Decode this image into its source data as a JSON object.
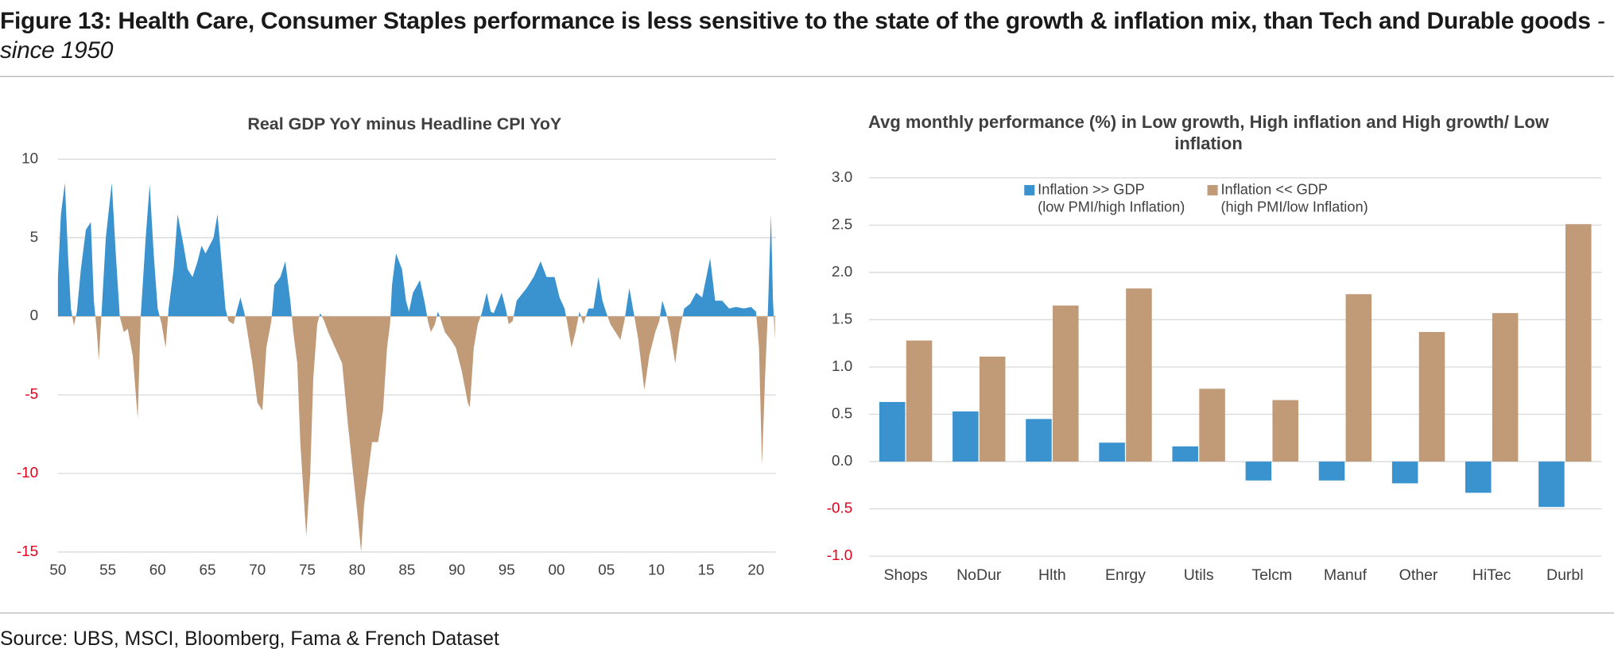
{
  "title": "Figure 13: Health Care, Consumer Staples performance is less sensitive to the state of the growth & inflation mix, than Tech and Durable goods",
  "subtitle": "- since 1950",
  "source": "Source: UBS, MSCI, Bloomberg, Fama & French Dataset",
  "chart_data": [
    {
      "type": "area",
      "title": "Real GDP YoY minus Headline CPI YoY",
      "x": [
        1950.0,
        1950.3,
        1950.7,
        1951.0,
        1951.3,
        1951.6,
        1951.9,
        1952.3,
        1952.8,
        1953.3,
        1953.6,
        1953.9,
        1954.1,
        1954.4,
        1954.8,
        1955.4,
        1955.8,
        1956.2,
        1956.6,
        1957.0,
        1957.5,
        1958.0,
        1958.3,
        1958.8,
        1959.2,
        1959.6,
        1960.0,
        1960.4,
        1960.8,
        1961.1,
        1961.6,
        1962.0,
        1962.6,
        1963.0,
        1963.5,
        1964.0,
        1964.4,
        1964.8,
        1965.2,
        1965.6,
        1966.0,
        1966.4,
        1966.8,
        1967.1,
        1967.6,
        1968.0,
        1968.3,
        1968.7,
        1969.0,
        1969.5,
        1970.0,
        1970.5,
        1970.9,
        1971.4,
        1971.7,
        1972.3,
        1972.8,
        1973.3,
        1973.6,
        1974.0,
        1974.3,
        1974.6,
        1974.9,
        1975.3,
        1975.6,
        1976.0,
        1976.3,
        1976.7,
        1977.1,
        1977.8,
        1978.5,
        1979.1,
        1979.6,
        1980.1,
        1980.4,
        1980.7,
        1981.5,
        1982.1,
        1982.6,
        1983.0,
        1983.3,
        1983.5,
        1983.9,
        1984.5,
        1984.9,
        1985.2,
        1985.6,
        1986.3,
        1986.8,
        1987.1,
        1987.4,
        1987.8,
        1988.1,
        1988.4,
        1988.8,
        1989.4,
        1989.9,
        1990.5,
        1991.1,
        1991.3,
        1991.7,
        1992.1,
        1992.5,
        1993.0,
        1993.4,
        1993.7,
        1994.5,
        1994.9,
        1995.2,
        1995.6,
        1996.0,
        1997.0,
        1997.7,
        1998.4,
        1999.0,
        1999.8,
        2000.3,
        2000.8,
        2001.1,
        2001.5,
        2001.9,
        2002.3,
        2002.7,
        2003.2,
        2003.7,
        2004.2,
        2004.6,
        2005.0,
        2005.4,
        2005.9,
        2006.4,
        2006.8,
        2007.3,
        2007.8,
        2008.2,
        2008.8,
        2009.3,
        2009.9,
        2010.3,
        2010.6,
        2011.0,
        2011.4,
        2011.9,
        2012.3,
        2012.8,
        2013.4,
        2014.0,
        2014.6,
        2015.4,
        2015.9,
        2016.6,
        2017.3,
        2018.0,
        2018.8,
        2019.5,
        2020.0,
        2020.3,
        2020.6,
        2020.9,
        2021.2,
        2021.5,
        2021.7,
        2021.9
      ],
      "values": [
        2.5,
        6.5,
        8.5,
        4,
        0.5,
        -0.6,
        0.3,
        3,
        5.5,
        6,
        1,
        -1,
        -2.8,
        0.5,
        5,
        8.5,
        4,
        0,
        -1,
        -0.8,
        -2.5,
        -6.5,
        0,
        5,
        8.4,
        4,
        0.5,
        -0.5,
        -2,
        0.5,
        3,
        6.5,
        4.5,
        3,
        2.5,
        3.5,
        4.5,
        4,
        4.5,
        5,
        6.5,
        3.5,
        0.5,
        -0.3,
        -0.5,
        0.5,
        1.2,
        0.2,
        -1,
        -3,
        -5.5,
        -6,
        -2,
        -0.3,
        2,
        2.5,
        3.5,
        1,
        -1,
        -3,
        -8,
        -11,
        -14,
        -10,
        -4,
        -0.5,
        0.2,
        -0.3,
        -1,
        -2,
        -3,
        -7,
        -10,
        -13,
        -15,
        -12,
        -8,
        -8,
        -6,
        -2,
        -0.5,
        2,
        4,
        3,
        1,
        0.3,
        1.5,
        2.3,
        0.8,
        -0.3,
        -1,
        -0.5,
        0.3,
        -0.2,
        -1,
        -1.5,
        -2,
        -3.5,
        -5.5,
        -5.8,
        -2,
        -0.5,
        0.2,
        1.5,
        0.3,
        0.2,
        1.5,
        0.5,
        -0.5,
        -0.3,
        1,
        1.8,
        2.5,
        3.5,
        2.5,
        2.5,
        1.2,
        0.5,
        -0.5,
        -2,
        -1,
        0.3,
        -0.5,
        0.5,
        0.5,
        2.5,
        1,
        0.2,
        -0.5,
        -1,
        -1.5,
        -0.3,
        1.8,
        0,
        -1.5,
        -4.7,
        -2.5,
        -1,
        -0.3,
        1,
        0.2,
        -1,
        -3,
        -1,
        0.5,
        0.8,
        1.5,
        1.2,
        3.7,
        1,
        1,
        0.5,
        0.6,
        0.5,
        0.6,
        0.3,
        -2,
        -9.5,
        -4,
        0.5,
        6.5,
        1,
        -1.5
      ],
      "colors": {
        "positive": "#3a93cf",
        "negative": "#c19a78"
      },
      "xlim": [
        1950,
        2022
      ],
      "xticks": [
        {
          "value": 1950,
          "label": "50"
        },
        {
          "value": 1955,
          "label": "55"
        },
        {
          "value": 1960,
          "label": "60"
        },
        {
          "value": 1965,
          "label": "65"
        },
        {
          "value": 1970,
          "label": "70"
        },
        {
          "value": 1975,
          "label": "75"
        },
        {
          "value": 1980,
          "label": "80"
        },
        {
          "value": 1985,
          "label": "85"
        },
        {
          "value": 1990,
          "label": "90"
        },
        {
          "value": 1995,
          "label": "95"
        },
        {
          "value": 2000,
          "label": "00"
        },
        {
          "value": 2005,
          "label": "05"
        },
        {
          "value": 2010,
          "label": "10"
        },
        {
          "value": 2015,
          "label": "15"
        },
        {
          "value": 2020,
          "label": "20"
        }
      ],
      "ylim": [
        -15,
        10
      ],
      "yticks": [
        -15,
        -10,
        -5,
        0,
        5,
        10
      ],
      "grid": true,
      "negative_tick_color": "#e2001a"
    },
    {
      "type": "bar",
      "title": "Avg monthly performance (%) in Low growth, High inflation and High growth/ Low inflation",
      "categories": [
        "Shops",
        "NoDur",
        "Hlth",
        "Enrgy",
        "Utils",
        "Telcm",
        "Manuf",
        "Other",
        "HiTec",
        "Durbl"
      ],
      "series": [
        {
          "name": "Inflation >> GDP",
          "description": "(low PMI/high Inflation)",
          "color": "#3a93cf",
          "values": [
            0.63,
            0.53,
            0.45,
            0.2,
            0.16,
            -0.2,
            -0.2,
            -0.23,
            -0.33,
            -0.48
          ]
        },
        {
          "name": "Inflation << GDP",
          "description": "(high PMI/low Inflation)",
          "color": "#c19a78",
          "values": [
            1.28,
            1.11,
            1.65,
            1.83,
            0.77,
            0.65,
            1.77,
            1.37,
            1.57,
            2.51
          ]
        }
      ],
      "ylim": [
        -1,
        3
      ],
      "yticks": [
        {
          "value": -1,
          "label": "-1.0"
        },
        {
          "value": -0.5,
          "label": "-0.5"
        },
        {
          "value": 0,
          "label": "0.0"
        },
        {
          "value": 0.5,
          "label": "0.5"
        },
        {
          "value": 1,
          "label": "1.0"
        },
        {
          "value": 1.5,
          "label": "1.5"
        },
        {
          "value": 2,
          "label": "2.0"
        },
        {
          "value": 2.5,
          "label": "2.5"
        },
        {
          "value": 3,
          "label": "3.0"
        }
      ],
      "grid": true,
      "legend": "top",
      "negative_tick_color": "#e2001a"
    }
  ]
}
